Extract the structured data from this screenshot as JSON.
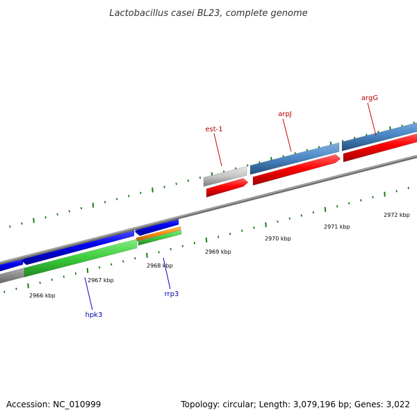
{
  "title": "Lactobacillus casei BL23, complete genome",
  "footer": {
    "accession": "Accession: NC_010999",
    "summary": "Topology: circular; Length: 3,079,196 bp; Genes: 3,022"
  },
  "colors": {
    "tick": "#1a7a1a",
    "backbone": "#7a7a7a",
    "gene_label_forward": "#b30000",
    "gene_label_reverse": "#0000aa"
  },
  "ruler": {
    "labels": [
      "2966 kbp",
      "2967 kbp",
      "2968 kbp",
      "2969 kbp",
      "2970 kbp",
      "2971 kbp",
      "2972 kbp"
    ]
  },
  "gene_labels": [
    {
      "name": "est-1",
      "strand": "forward"
    },
    {
      "name": "arpJ",
      "strand": "forward"
    },
    {
      "name": "argG",
      "strand": "forward"
    },
    {
      "name": "hpk3",
      "strand": "reverse"
    },
    {
      "name": "rrp3",
      "strand": "reverse"
    }
  ]
}
